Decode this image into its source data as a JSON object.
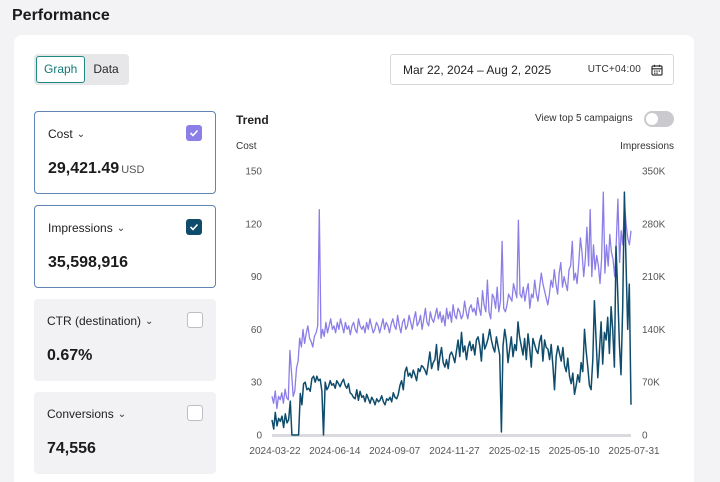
{
  "page": {
    "title": "Performance"
  },
  "view_toggle": {
    "graph_label": "Graph",
    "data_label": "Data",
    "selected": "Graph"
  },
  "date_picker": {
    "range": "Mar 22, 2024 – Aug 2, 2025",
    "timezone": "UTC+04:00",
    "icon": "calendar-icon"
  },
  "metrics": [
    {
      "name": "Cost",
      "value": "29,421.49",
      "unit": "USD",
      "checked": true,
      "check_color": "#8b7ee6"
    },
    {
      "name": "Impressions",
      "value": "35,598,916",
      "unit": "",
      "checked": true,
      "check_color": "#0f4c6b"
    },
    {
      "name": "CTR (destination)",
      "value": "0.67%",
      "unit": "",
      "checked": false
    },
    {
      "name": "Conversions",
      "value": "74,556",
      "unit": "",
      "checked": false
    }
  ],
  "trend": {
    "title": "Trend",
    "top_campaigns_label": "View top 5 campaigns",
    "top_campaigns_enabled": false,
    "left_axis_title": "Cost",
    "right_axis_title": "Impressions"
  },
  "chart_data": {
    "type": "line",
    "x_ticks": [
      "2024-03-22",
      "2024-06-14",
      "2024-09-07",
      "2024-11-27",
      "2025-02-15",
      "2025-05-10",
      "2025-07-31"
    ],
    "y_left_ticks": [
      "0",
      "30",
      "60",
      "90",
      "120",
      "150"
    ],
    "y_right_ticks": [
      "0",
      "70K",
      "140K",
      "210K",
      "280K",
      "350K"
    ],
    "y_left_range": [
      0,
      150
    ],
    "y_right_range": [
      0,
      350000
    ],
    "series": [
      {
        "name": "Cost",
        "axis": "left",
        "color": "#8b7ee6",
        "values": [
          22,
          18,
          25,
          15,
          22,
          20,
          24,
          18,
          26,
          21,
          20,
          48,
          35,
          22,
          25,
          38,
          42,
          55,
          50,
          60,
          52,
          58,
          62,
          55,
          53,
          50,
          56,
          58,
          62,
          128,
          55,
          60,
          56,
          64,
          58,
          62,
          66,
          60,
          62,
          58,
          64,
          60,
          66,
          62,
          58,
          64,
          60,
          62,
          57,
          62,
          64,
          60,
          58,
          66,
          62,
          60,
          62,
          58,
          64,
          60,
          66,
          62,
          58,
          60,
          64,
          62,
          58,
          62,
          66,
          60,
          64,
          62,
          58,
          63,
          66,
          62,
          60,
          68,
          62,
          58,
          64,
          66,
          60,
          62,
          68,
          64,
          60,
          66,
          70,
          62,
          64,
          68,
          60,
          66,
          72,
          64,
          62,
          70,
          66,
          64,
          68,
          72,
          66,
          70,
          64,
          68,
          62,
          72,
          66,
          70,
          64,
          74,
          68,
          66,
          72,
          70,
          66,
          68,
          76,
          70,
          66,
          72,
          74,
          70,
          72,
          68,
          78,
          72,
          68,
          82,
          74,
          70,
          88,
          70,
          66,
          80,
          78,
          72,
          84,
          70,
          76,
          110,
          72,
          70,
          74,
          80,
          78,
          76,
          86,
          82,
          78,
          122,
          80,
          78,
          84,
          76,
          82,
          86,
          72,
          80,
          78,
          88,
          80,
          76,
          84,
          92,
          86,
          82,
          78,
          74,
          80,
          88,
          84,
          94,
          86,
          80,
          92,
          98,
          84,
          90,
          86,
          82,
          94,
          96,
          110,
          88,
          92,
          86,
          98,
          112,
          104,
          90,
          100,
          118,
          96,
          128,
          90,
          108,
          94,
          102,
          96,
          86,
          100,
          138,
          92,
          108,
          96,
          114,
          104,
          100,
          90,
          110,
          134,
          98,
          116,
          108,
          132,
          120,
          112,
          108,
          116
        ],
        "line_width": 1.3
      },
      {
        "name": "Impressions",
        "axis": "right",
        "color": "#0f4c6b",
        "values": [
          20000,
          8000,
          30000,
          12000,
          22000,
          18000,
          25000,
          10000,
          28000,
          16000,
          20000,
          45000,
          0,
          0,
          0,
          0,
          0,
          55000,
          40000,
          68000,
          70000,
          60000,
          62000,
          58000,
          75000,
          78000,
          70000,
          78000,
          72000,
          74000,
          58000,
          0,
          70000,
          60000,
          64000,
          72000,
          66000,
          68000,
          62000,
          72000,
          68000,
          64000,
          70000,
          74000,
          66000,
          62000,
          68000,
          56000,
          54000,
          50000,
          48000,
          60000,
          46000,
          58000,
          50000,
          52000,
          44000,
          54000,
          48000,
          42000,
          50000,
          46000,
          40000,
          48000,
          44000,
          46000,
          52000,
          44000,
          40000,
          48000,
          46000,
          50000,
          44000,
          56000,
          50000,
          48000,
          54000,
          66000,
          72000,
          60000,
          84000,
          90000,
          78000,
          82000,
          76000,
          86000,
          80000,
          72000,
          88000,
          84000,
          92000,
          90000,
          86000,
          80000,
          94000,
          110000,
          88000,
          96000,
          100000,
          120000,
          86000,
          104000,
          116000,
          96000,
          90000,
          100000,
          88000,
          106000,
          110000,
          104000,
          96000,
          112000,
          126000,
          104000,
          136000,
          110000,
          118000,
          100000,
          116000,
          124000,
          112000,
          120000,
          106000,
          126000,
          130000,
          118000,
          98000,
          134000,
          114000,
          120000,
          128000,
          140000,
          126000,
          116000,
          110000,
          130000,
          118000,
          106000,
          4000,
          118000,
          140000,
          126000,
          96000,
          114000,
          130000,
          104000,
          120000,
          112000,
          150000,
          130000,
          118000,
          106000,
          128000,
          100000,
          134000,
          116000,
          90000,
          128000,
          120000,
          112000,
          108000,
          124000,
          132000,
          98000,
          126000,
          116000,
          114000,
          100000,
          120000,
          92000,
          60000,
          104000,
          118000,
          108000,
          98000,
          116000,
          92000,
          84000,
          102000,
          78000,
          68000,
          82000,
          54000,
          66000,
          80000,
          70000,
          96000,
          84000,
          140000,
          112000,
          90000,
          66000,
          60000,
          100000,
          178000,
          126000,
          76000,
          110000,
          150000,
          94000,
          136000,
          126000,
          156000,
          108000,
          170000,
          140000,
          90000,
          250000,
          190000,
          120000,
          80000,
          170000,
          322000,
          230000,
          140000,
          200000,
          40000
        ],
        "line_width": 1.5
      }
    ]
  }
}
